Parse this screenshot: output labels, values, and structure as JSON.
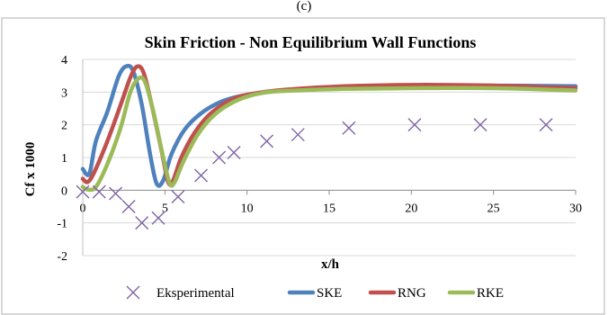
{
  "caption_fragment": "(c)",
  "chart_data": {
    "type": "line",
    "title": "Skin Friction - Non Equilibrium Wall Functions",
    "xlabel": "x/h",
    "ylabel": "Cf x 1000",
    "xlim": [
      0,
      30
    ],
    "ylim": [
      -2,
      4
    ],
    "x_ticks": [
      0,
      5,
      10,
      15,
      20,
      25,
      30
    ],
    "y_ticks": [
      -2,
      -1,
      0,
      1,
      2,
      3,
      4
    ],
    "grid": "horizontal",
    "legend_position": "bottom",
    "experimental": {
      "name": "Eksperimental",
      "marker": "x",
      "color": "#8064A2",
      "points": [
        [
          0,
          -0.05
        ],
        [
          1,
          -0.05
        ],
        [
          2,
          -0.1
        ],
        [
          2.8,
          -0.5
        ],
        [
          3.6,
          -1.0
        ],
        [
          4.6,
          -0.85
        ],
        [
          5.8,
          -0.2
        ],
        [
          7.2,
          0.45
        ],
        [
          8.3,
          1.0
        ],
        [
          9.2,
          1.15
        ],
        [
          11.2,
          1.5
        ],
        [
          13.1,
          1.7
        ],
        [
          16.2,
          1.9
        ],
        [
          20.2,
          2.0
        ],
        [
          24.2,
          2.0
        ],
        [
          28.2,
          2.0
        ]
      ]
    },
    "series": [
      {
        "name": "SKE",
        "color": "#4F81BD",
        "points": [
          [
            0,
            0.65
          ],
          [
            0.4,
            0.5
          ],
          [
            0.8,
            1.5
          ],
          [
            1.5,
            2.4
          ],
          [
            2.2,
            3.5
          ],
          [
            2.7,
            3.8
          ],
          [
            3.1,
            3.6
          ],
          [
            3.6,
            2.6
          ],
          [
            4.1,
            1.1
          ],
          [
            4.5,
            0.2
          ],
          [
            4.9,
            0.3
          ],
          [
            5.4,
            1.1
          ],
          [
            6.2,
            1.85
          ],
          [
            7.2,
            2.35
          ],
          [
            8.4,
            2.7
          ],
          [
            9.6,
            2.88
          ],
          [
            11.2,
            3.0
          ],
          [
            13,
            3.08
          ],
          [
            16,
            3.15
          ],
          [
            20,
            3.2
          ],
          [
            25,
            3.2
          ],
          [
            30,
            3.18
          ]
        ]
      },
      {
        "name": "RNG",
        "color": "#C0504D",
        "points": [
          [
            0,
            0.35
          ],
          [
            0.3,
            0.25
          ],
          [
            0.7,
            0.55
          ],
          [
            1.5,
            1.5
          ],
          [
            2.3,
            2.6
          ],
          [
            2.9,
            3.45
          ],
          [
            3.3,
            3.78
          ],
          [
            3.7,
            3.6
          ],
          [
            4.2,
            2.6
          ],
          [
            4.8,
            1.2
          ],
          [
            5.2,
            0.25
          ],
          [
            5.5,
            0.3
          ],
          [
            6,
            1.0
          ],
          [
            6.8,
            1.75
          ],
          [
            7.8,
            2.35
          ],
          [
            9.2,
            2.8
          ],
          [
            11,
            3.0
          ],
          [
            13,
            3.1
          ],
          [
            16,
            3.18
          ],
          [
            20,
            3.22
          ],
          [
            25,
            3.2
          ],
          [
            30,
            3.12
          ]
        ]
      },
      {
        "name": "RKE",
        "color": "#9BBB59",
        "points": [
          [
            0,
            0.1
          ],
          [
            0.3,
            0.02
          ],
          [
            0.8,
            0.1
          ],
          [
            1.5,
            0.8
          ],
          [
            2.3,
            1.9
          ],
          [
            2.9,
            3.0
          ],
          [
            3.4,
            3.42
          ],
          [
            3.8,
            3.3
          ],
          [
            4.3,
            2.4
          ],
          [
            4.9,
            1.0
          ],
          [
            5.3,
            0.2
          ],
          [
            5.6,
            0.25
          ],
          [
            6.1,
            0.85
          ],
          [
            7,
            1.7
          ],
          [
            8,
            2.3
          ],
          [
            9.4,
            2.75
          ],
          [
            11,
            2.98
          ],
          [
            13,
            3.05
          ],
          [
            16,
            3.1
          ],
          [
            20,
            3.12
          ],
          [
            25,
            3.12
          ],
          [
            30,
            3.05
          ]
        ]
      }
    ]
  }
}
